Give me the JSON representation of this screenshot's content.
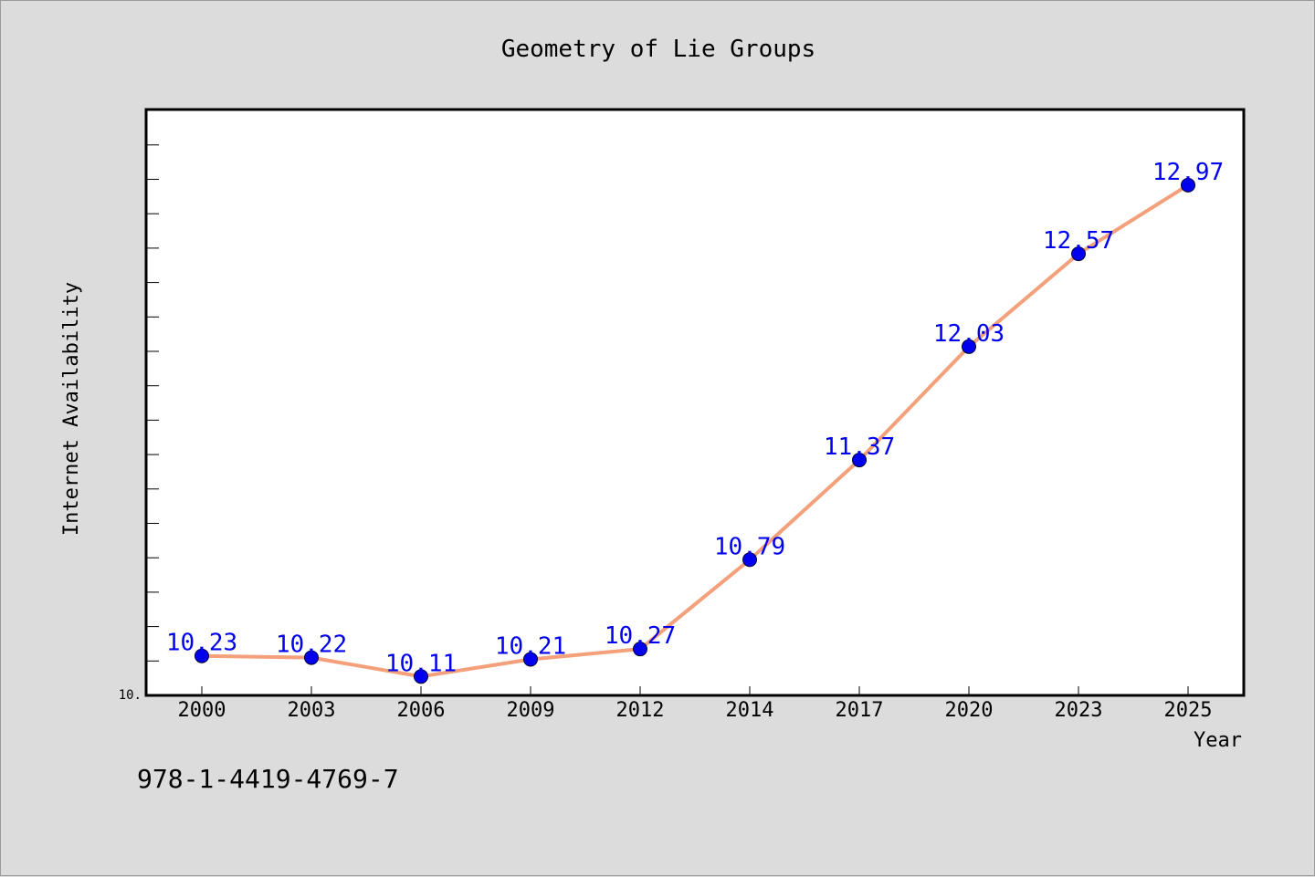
{
  "chart_data": {
    "type": "line",
    "title": "Geometry of Lie Groups",
    "xlabel": "Year",
    "ylabel": "Internet Availability",
    "categories": [
      "2000",
      "2003",
      "2006",
      "2009",
      "2012",
      "2014",
      "2017",
      "2020",
      "2023",
      "2025"
    ],
    "series": [
      {
        "values": [
          10.23,
          10.22,
          10.11,
          10.21,
          10.27,
          10.79,
          11.37,
          12.03,
          12.57,
          12.97
        ],
        "labels": [
          "10.23",
          "10.22",
          "10.11",
          "10.21",
          "10.27",
          "10.79",
          "11.37",
          "12.03",
          "12.57",
          "12.97"
        ],
        "line_color": "#f4a07a",
        "marker_color": "#0000ee"
      }
    ],
    "ylim": [
      10.0,
      13.41
    ],
    "ytick_label": "10.",
    "grid": false,
    "legend": "none"
  },
  "footer": {
    "isbn": "978-1-4419-4769-7"
  }
}
